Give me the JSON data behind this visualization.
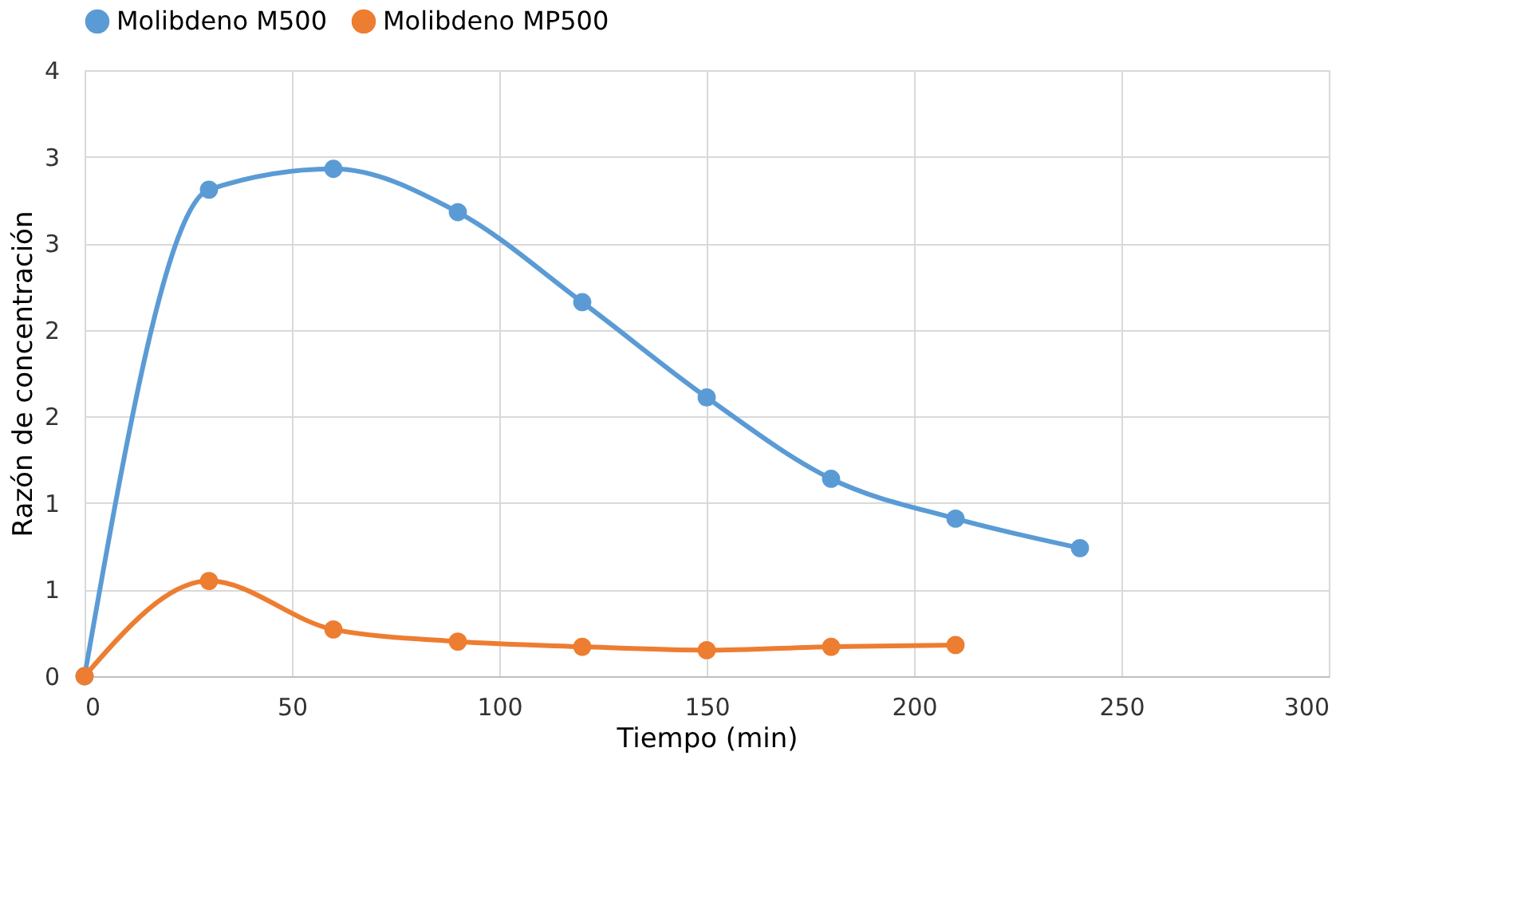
{
  "chart_data": {
    "type": "line",
    "xlabel": "Tiempo (min)",
    "ylabel": "Razón de concentración",
    "x": [
      0,
      30,
      60,
      90,
      120,
      150,
      180,
      210,
      240
    ],
    "series": [
      {
        "name": "Molibdeno M500",
        "color": "#5b9bd5",
        "values": [
          0,
          2.81,
          2.93,
          2.68,
          2.16,
          1.61,
          1.14,
          0.91,
          0.74
        ]
      },
      {
        "name": "Molibdeno MP500",
        "color": "#ed7d31",
        "values": [
          0,
          0.55,
          0.27,
          0.2,
          0.17,
          0.15,
          0.17,
          0.18,
          null
        ]
      }
    ],
    "xlim": [
      0,
      300
    ],
    "xticks": [
      0,
      50,
      100,
      150,
      200,
      250,
      300
    ],
    "ylim": [
      0,
      3.5
    ],
    "yticks": [
      {
        "value": 0,
        "label": "0"
      },
      {
        "value": 0.5,
        "label": "1"
      },
      {
        "value": 1,
        "label": "1"
      },
      {
        "value": 1.5,
        "label": "2"
      },
      {
        "value": 2,
        "label": "2"
      },
      {
        "value": 2.5,
        "label": "3"
      },
      {
        "value": 3,
        "label": "3"
      },
      {
        "value": 3.5,
        "label": "4"
      }
    ],
    "grid": true,
    "legend": "top",
    "marker": "circle",
    "line_style": "solid"
  }
}
